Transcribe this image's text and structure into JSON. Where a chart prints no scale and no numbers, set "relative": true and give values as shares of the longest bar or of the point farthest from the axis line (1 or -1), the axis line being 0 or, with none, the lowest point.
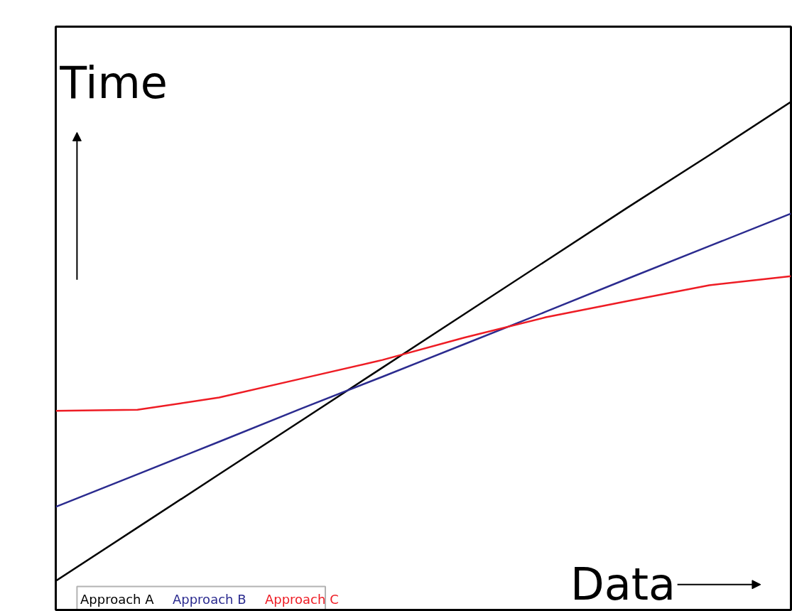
{
  "chart_data": {
    "type": "line",
    "relative": true,
    "xlabel": "Data",
    "ylabel": "Time",
    "legend": "bottom left",
    "grid": false,
    "categories": [
      null,
      null,
      null,
      null,
      null,
      null,
      null,
      null,
      null,
      null
    ],
    "series": [
      {
        "name": "Approach A",
        "color": "#000000",
        "values": [
          0.057,
          0.162,
          0.267,
          0.372,
          0.477,
          0.582,
          0.687,
          0.792,
          0.895,
          1
        ]
      },
      {
        "name": "Approach B",
        "color": "#2b2b8f",
        "values": [
          0.203,
          0.267,
          0.331,
          0.396,
          0.459,
          0.523,
          0.587,
          0.652,
          0.716,
          0.78
        ]
      },
      {
        "name": "Approach C",
        "color": "#ee1c24",
        "values": [
          0.392,
          0.394,
          0.418,
          0.455,
          0.492,
          0.536,
          0.576,
          0.608,
          0.639,
          0.657
        ]
      }
    ]
  }
}
